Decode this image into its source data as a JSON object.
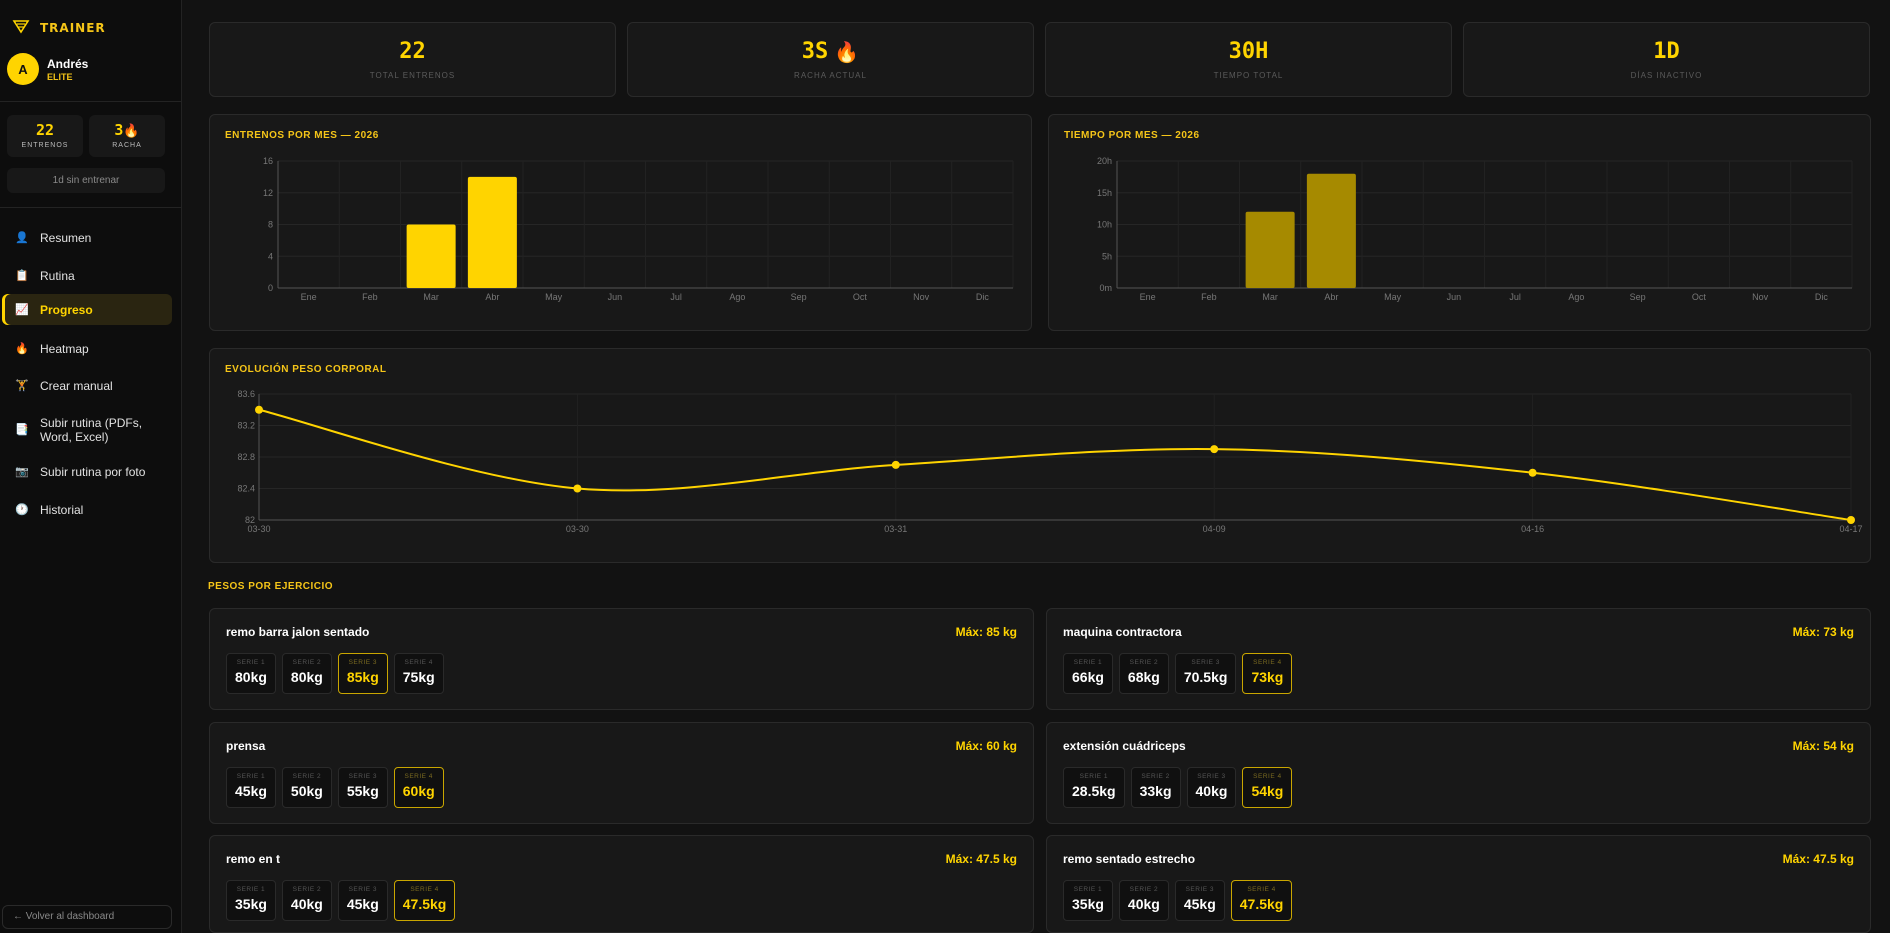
{
  "app": {
    "logo_text": "TRAINER",
    "logo_sub": "TRAINER"
  },
  "user": {
    "initial": "A",
    "name": "Andrés",
    "plan": "ELITE"
  },
  "sidebar_stats": [
    {
      "value": "22",
      "label": "ENTRENOS",
      "icon": ""
    },
    {
      "value": "3",
      "label": "RACHA",
      "icon": "fire-icon"
    }
  ],
  "inactive_text": "1d sin entrenar",
  "nav": [
    {
      "label": "Resumen",
      "icon": "person-icon",
      "active": false
    },
    {
      "label": "Rutina",
      "icon": "clipboard-icon",
      "active": false
    },
    {
      "label": "Progreso",
      "icon": "chart-icon",
      "active": true
    },
    {
      "label": "Heatmap",
      "icon": "fire-icon",
      "active": false
    },
    {
      "label": "Crear manual",
      "icon": "dumbbell-icon",
      "active": false
    },
    {
      "label": "Subir rutina (PDFs, Word, Excel)",
      "icon": "document-icon",
      "active": false
    },
    {
      "label": "Subir rutina por foto",
      "icon": "camera-icon",
      "active": false
    },
    {
      "label": "Historial",
      "icon": "clock-icon",
      "active": false
    }
  ],
  "back_label": "← Volver al dashboard",
  "stats": [
    {
      "value": "22",
      "label": "TOTAL ENTRENOS",
      "icon": ""
    },
    {
      "value": "3S",
      "label": "RACHA ACTUAL",
      "icon": "fire-icon"
    },
    {
      "value": "30H",
      "label": "TIEMPO TOTAL",
      "icon": ""
    },
    {
      "value": "1D",
      "label": "DÍAS INACTIVO",
      "icon": ""
    }
  ],
  "panels": {
    "entrenos_title": "ENTRENOS POR MES — 2026",
    "tiempo_title": "TIEMPO POR MES — 2026",
    "peso_title": "EVOLUCIÓN PESO CORPORAL"
  },
  "colors": {
    "accent": "#ffd400",
    "accent_dark": "#a68a00",
    "background": "#121212",
    "card": "#181818"
  },
  "chart_data": [
    {
      "type": "bar",
      "title": "ENTRENOS POR MES — 2026",
      "categories": [
        "Ene",
        "Feb",
        "Mar",
        "Abr",
        "May",
        "Jun",
        "Jul",
        "Ago",
        "Sep",
        "Oct",
        "Nov",
        "Dic"
      ],
      "values": [
        0,
        0,
        8,
        14,
        0,
        0,
        0,
        0,
        0,
        0,
        0,
        0
      ],
      "ylim": [
        0,
        16
      ],
      "yticks": [
        "0",
        "4",
        "8",
        "12",
        "16"
      ],
      "grid": true,
      "color": "#ffd400"
    },
    {
      "type": "bar",
      "title": "TIEMPO POR MES — 2026",
      "categories": [
        "Ene",
        "Feb",
        "Mar",
        "Abr",
        "May",
        "Jun",
        "Jul",
        "Ago",
        "Sep",
        "Oct",
        "Nov",
        "Dic"
      ],
      "values": [
        0,
        0,
        12,
        18,
        0,
        0,
        0,
        0,
        0,
        0,
        0,
        0
      ],
      "ylim": [
        0,
        20
      ],
      "yticks": [
        "0m",
        "5h",
        "10h",
        "15h",
        "20h"
      ],
      "grid": true,
      "color": "#a68a00"
    },
    {
      "type": "line",
      "title": "EVOLUCIÓN PESO CORPORAL",
      "x": [
        "03-30",
        "03-30",
        "03-31",
        "04-09",
        "04-16",
        "04-17"
      ],
      "values": [
        83.4,
        82.4,
        82.7,
        82.9,
        82.6,
        82
      ],
      "ylim": [
        82,
        83.6
      ],
      "yticks": [
        "82",
        "82.4",
        "82.8",
        "83.2",
        "83.6"
      ],
      "grid": true,
      "color": "#ffd400"
    }
  ],
  "section_title": "PESOS POR EJERCICIO",
  "exercises": [
    {
      "name": "remo barra jalon sentado",
      "max": "Máx: 85 kg",
      "sets": [
        {
          "label": "SERIE 1",
          "value": "80kg",
          "top": false
        },
        {
          "label": "SERIE 2",
          "value": "80kg",
          "top": false
        },
        {
          "label": "SERIE 3",
          "value": "85kg",
          "top": true
        },
        {
          "label": "SERIE 4",
          "value": "75kg",
          "top": false
        }
      ]
    },
    {
      "name": "maquina contractora",
      "max": "Máx: 73 kg",
      "sets": [
        {
          "label": "SERIE 1",
          "value": "66kg",
          "top": false
        },
        {
          "label": "SERIE 2",
          "value": "68kg",
          "top": false
        },
        {
          "label": "SERIE 3",
          "value": "70.5kg",
          "top": false
        },
        {
          "label": "SERIE 4",
          "value": "73kg",
          "top": true
        }
      ]
    },
    {
      "name": "prensa",
      "max": "Máx: 60 kg",
      "sets": [
        {
          "label": "SERIE 1",
          "value": "45kg",
          "top": false
        },
        {
          "label": "SERIE 2",
          "value": "50kg",
          "top": false
        },
        {
          "label": "SERIE 3",
          "value": "55kg",
          "top": false
        },
        {
          "label": "SERIE 4",
          "value": "60kg",
          "top": true
        }
      ]
    },
    {
      "name": "extensión cuádriceps",
      "max": "Máx: 54 kg",
      "sets": [
        {
          "label": "SERIE 1",
          "value": "28.5kg",
          "top": false
        },
        {
          "label": "SERIE 2",
          "value": "33kg",
          "top": false
        },
        {
          "label": "SERIE 3",
          "value": "40kg",
          "top": false
        },
        {
          "label": "SERIE 4",
          "value": "54kg",
          "top": true
        }
      ]
    },
    {
      "name": "remo en t",
      "max": "Máx: 47.5 kg",
      "sets": [
        {
          "label": "SERIE 1",
          "value": "35kg",
          "top": false
        },
        {
          "label": "SERIE 2",
          "value": "40kg",
          "top": false
        },
        {
          "label": "SERIE 3",
          "value": "45kg",
          "top": false
        },
        {
          "label": "SERIE 4",
          "value": "47.5kg",
          "top": true
        }
      ]
    },
    {
      "name": "remo sentado estrecho",
      "max": "Máx: 47.5 kg",
      "sets": [
        {
          "label": "SERIE 1",
          "value": "35kg",
          "top": false
        },
        {
          "label": "SERIE 2",
          "value": "40kg",
          "top": false
        },
        {
          "label": "SERIE 3",
          "value": "45kg",
          "top": false
        },
        {
          "label": "SERIE 4",
          "value": "47.5kg",
          "top": true
        }
      ]
    }
  ]
}
